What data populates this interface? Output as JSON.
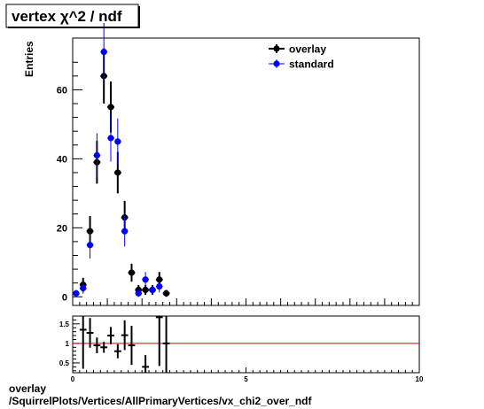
{
  "title": "vertex  χ^2 / ndf",
  "footer": {
    "line1": "overlay",
    "line2": "/SquirrelPlots/Vertices/AllPrimaryVertices/vx_chi2_over_ndf"
  },
  "colors": {
    "overlay": "#000000",
    "standard": "#0000ff",
    "ratio_line": "#cc0000"
  },
  "chart_data": [
    {
      "type": "scatter",
      "ylabel": "Entries",
      "xlim": [
        0,
        10
      ],
      "ylim": [
        -2.5,
        75
      ],
      "y_ticks": [
        0,
        20,
        40,
        60
      ],
      "legend": {
        "placement": "top-right",
        "entries": [
          "overlay",
          "standard"
        ]
      },
      "series": [
        {
          "name": "overlay",
          "points": [
            {
              "x": 0.3,
              "y": 3.5,
              "err": 2
            },
            {
              "x": 0.5,
              "y": 19,
              "err": 4.4
            },
            {
              "x": 0.7,
              "y": 39,
              "err": 6.2
            },
            {
              "x": 0.9,
              "y": 64,
              "err": 8
            },
            {
              "x": 1.1,
              "y": 55,
              "err": 7.4
            },
            {
              "x": 1.3,
              "y": 36,
              "err": 6
            },
            {
              "x": 1.5,
              "y": 23,
              "err": 4.8
            },
            {
              "x": 1.7,
              "y": 7,
              "err": 2.6
            },
            {
              "x": 1.9,
              "y": 2,
              "err": 1.4
            },
            {
              "x": 2.1,
              "y": 2,
              "err": 1.4
            },
            {
              "x": 2.3,
              "y": 2,
              "err": 1.4
            },
            {
              "x": 2.5,
              "y": 5,
              "err": 2.2
            },
            {
              "x": 2.7,
              "y": 1,
              "err": 1
            }
          ]
        },
        {
          "name": "standard",
          "points": [
            {
              "x": 0.1,
              "y": 1,
              "err": 1
            },
            {
              "x": 0.3,
              "y": 2.5,
              "err": 1.6
            },
            {
              "x": 0.5,
              "y": 15,
              "err": 3.9
            },
            {
              "x": 0.7,
              "y": 41,
              "err": 6.4
            },
            {
              "x": 0.9,
              "y": 71,
              "err": 8.4
            },
            {
              "x": 1.1,
              "y": 46,
              "err": 6.8
            },
            {
              "x": 1.3,
              "y": 45,
              "err": 6.7
            },
            {
              "x": 1.5,
              "y": 19,
              "err": 4.4
            },
            {
              "x": 1.9,
              "y": 1,
              "err": 1
            },
            {
              "x": 2.1,
              "y": 5,
              "err": 2.2
            },
            {
              "x": 2.3,
              "y": 2,
              "err": 1.4
            },
            {
              "x": 2.5,
              "y": 3,
              "err": 1.7
            }
          ]
        }
      ]
    },
    {
      "type": "scatter",
      "xlim": [
        0,
        10
      ],
      "ylim": [
        0.25,
        1.7
      ],
      "x_ticks": [
        0,
        5,
        10
      ],
      "y_ticks": [
        0.5,
        1,
        1.5
      ],
      "reference_line": 1,
      "points": [
        {
          "x": 0.3,
          "y": 1.35,
          "err": 1.0
        },
        {
          "x": 0.5,
          "y": 1.27,
          "err": 0.38
        },
        {
          "x": 0.7,
          "y": 0.95,
          "err": 0.2
        },
        {
          "x": 0.9,
          "y": 0.9,
          "err": 0.14
        },
        {
          "x": 1.1,
          "y": 1.2,
          "err": 0.22
        },
        {
          "x": 1.3,
          "y": 0.8,
          "err": 0.18
        },
        {
          "x": 1.5,
          "y": 1.21,
          "err": 0.38
        },
        {
          "x": 1.7,
          "y": 0.95,
          "err": 0.5
        },
        {
          "x": 2.1,
          "y": 0.4,
          "err": 0.3
        },
        {
          "x": 2.5,
          "y": 1.67,
          "err": 1.25
        },
        {
          "x": 2.7,
          "y": 1.0,
          "err": 1.2
        }
      ]
    }
  ]
}
